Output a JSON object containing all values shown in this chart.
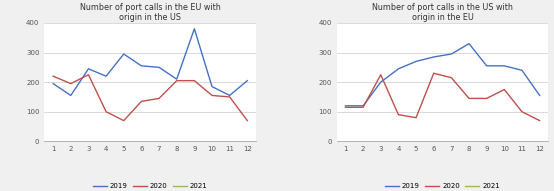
{
  "chart1": {
    "title": "Number of port calls in the EU with\norigin in the US",
    "x": [
      1,
      2,
      3,
      4,
      5,
      6,
      7,
      8,
      9,
      10,
      11,
      12
    ],
    "y2019": [
      195,
      155,
      245,
      220,
      295,
      255,
      250,
      210,
      380,
      185,
      155,
      205
    ],
    "y2020": [
      220,
      195,
      225,
      100,
      70,
      135,
      145,
      205,
      205,
      155,
      150,
      70
    ],
    "y2021": [],
    "ylim": [
      0,
      400
    ],
    "yticks": [
      0,
      100,
      200,
      300,
      400
    ]
  },
  "chart2": {
    "title": "Number of port calls in the US with\norigin in the EU",
    "x": [
      1,
      2,
      3,
      4,
      5,
      6,
      7,
      8,
      9,
      10,
      11,
      12
    ],
    "y2019": [
      120,
      120,
      200,
      245,
      270,
      285,
      295,
      330,
      255,
      255,
      240,
      155
    ],
    "y2020": [
      115,
      115,
      225,
      90,
      80,
      230,
      215,
      145,
      145,
      175,
      100,
      70
    ],
    "y2021": [],
    "ylim": [
      0,
      400
    ],
    "yticks": [
      0,
      100,
      200,
      300,
      400
    ]
  },
  "colors": {
    "2019": "#4472c4",
    "2020": "#c0504d",
    "2021": "#9bbb59"
  },
  "legend_labels": [
    "2019",
    "2020",
    "2021"
  ],
  "bg_color": "#f0f0f0",
  "plot_bg_color": "#ffffff",
  "outer_bg": "#e8e8e8"
}
